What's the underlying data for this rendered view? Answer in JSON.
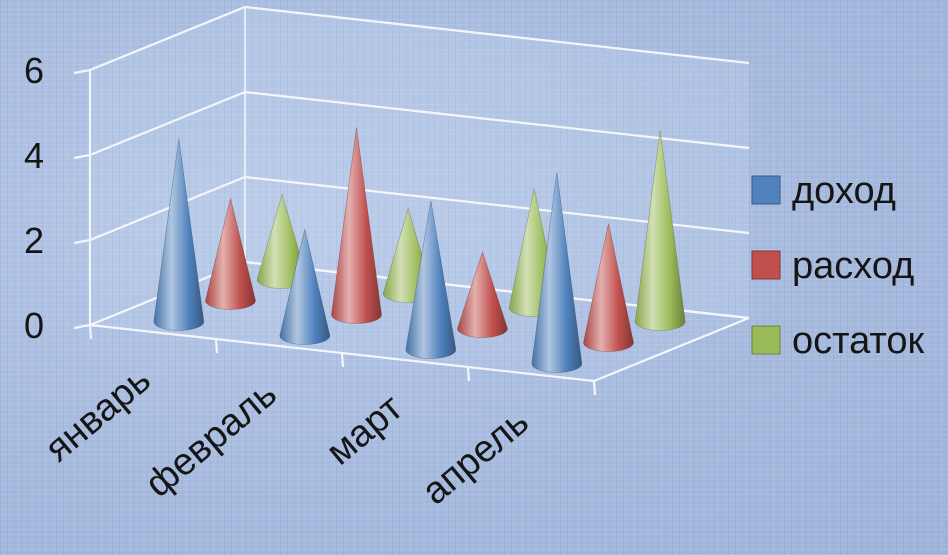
{
  "chart_data": {
    "type": "bar",
    "subtype": "3d-cone",
    "categories": [
      "январь",
      "февраль",
      "март",
      "апрель"
    ],
    "series": [
      {
        "name": "доход",
        "values": [
          4.3,
          2.5,
          3.5,
          4.5
        ],
        "color": "#4f81bd"
      },
      {
        "name": "расход",
        "values": [
          2.4,
          4.4,
          1.8,
          2.8
        ],
        "color": "#c0504d"
      },
      {
        "name": "остаток",
        "values": [
          2.0,
          2.0,
          2.8,
          4.5
        ],
        "color": "#9bbb59"
      }
    ],
    "yticks": [
      "0",
      "2",
      "4",
      "6"
    ],
    "ylim": [
      0,
      6
    ],
    "grid": true,
    "legend_position": "right"
  }
}
